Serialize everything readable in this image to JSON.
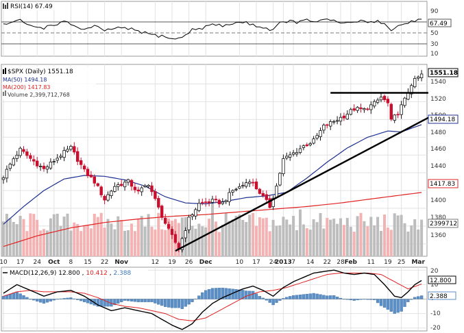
{
  "rsi_panel": {
    "label": "RSI(14) 67.49",
    "badge": "67.49",
    "ticks": [
      "90",
      "70",
      "50",
      "30",
      "10"
    ],
    "ytick_values": [
      90,
      70,
      50,
      30,
      10
    ],
    "ylim": [
      0,
      100
    ],
    "levels": [
      70,
      50,
      30
    ]
  },
  "price_panel": {
    "legend": {
      "symbol": "$SPX (Daily) 1551.18",
      "ma50": "MA(50) 1494.18",
      "ma200": "MA(200) 1417.83",
      "volume": "Volume 2,399,712,768"
    },
    "badges": {
      "last": "1551.18",
      "ma50": "1494.18",
      "ma200": "1417.83",
      "volume": "2399712"
    },
    "ticks": [
      "1540",
      "1520",
      "1500",
      "1480",
      "1460",
      "1440",
      "1420",
      "1400",
      "1380",
      "1360"
    ],
    "ytick_values": [
      1540,
      1520,
      1500,
      1480,
      1460,
      1440,
      1420,
      1400,
      1380,
      1360
    ],
    "ylim": [
      1346,
      1562
    ]
  },
  "x_axis": {
    "labels": [
      "10",
      "17",
      "24",
      "Oct",
      "8",
      "15",
      "22",
      "Nov",
      "12",
      "19",
      "26",
      "Dec",
      "10",
      "17",
      "24",
      "2013",
      "7",
      "14",
      "22",
      "28",
      "Feb",
      "11",
      "19",
      "25",
      "Mar"
    ],
    "bold": [
      "Oct",
      "Nov",
      "Dec",
      "2013",
      "Feb",
      "Mar"
    ],
    "session_index": [
      0,
      5,
      10,
      15,
      20,
      25,
      30,
      35,
      45,
      50,
      55,
      60,
      70,
      75,
      80,
      83,
      86,
      91,
      96,
      100,
      103,
      109,
      114,
      118,
      123
    ]
  },
  "macd_panel": {
    "label_name": "MACD(12,26,9)",
    "macd": "12.800",
    "signal": "10.412",
    "histogram": "2.388",
    "badges": {
      "macd": "12.800",
      "hist": "2.388"
    },
    "ticks": [
      "20",
      "10",
      "0",
      "-10",
      "-20"
    ],
    "ytick_values": [
      20,
      10,
      0,
      -10,
      -20
    ],
    "ylim": [
      -22,
      22
    ]
  },
  "colors": {
    "up": "#111111",
    "down": "#c8102e",
    "ma50": "#1c2f8f",
    "ma200": "#e02020",
    "vol_up": "#bdbdbd",
    "vol_down": "#f4b2b2",
    "macd": "#000000",
    "signal": "#e02020",
    "hist": "#5b8fc7",
    "grid": "#e2e2e2",
    "trend": "#000000"
  },
  "chart_data": {
    "type": "candlestick",
    "x_labels": [
      "10",
      "17",
      "24",
      "Oct",
      "8",
      "15",
      "22",
      "Nov",
      "12",
      "19",
      "26",
      "Dec",
      "10",
      "17",
      "24",
      "2013",
      "7",
      "14",
      "22",
      "28",
      "Feb",
      "11",
      "19",
      "25",
      "Mar"
    ],
    "price_anchors": [
      [
        0,
        1436
      ],
      [
        3,
        1456
      ],
      [
        5,
        1466
      ],
      [
        8,
        1456
      ],
      [
        12,
        1444
      ],
      [
        17,
        1460
      ],
      [
        20,
        1468
      ],
      [
        24,
        1442
      ],
      [
        27,
        1430
      ],
      [
        30,
        1410
      ],
      [
        33,
        1425
      ],
      [
        37,
        1430
      ],
      [
        40,
        1418
      ],
      [
        43,
        1428
      ],
      [
        46,
        1400
      ],
      [
        49,
        1375
      ],
      [
        52,
        1355
      ],
      [
        55,
        1388
      ],
      [
        58,
        1405
      ],
      [
        62,
        1408
      ],
      [
        65,
        1406
      ],
      [
        68,
        1420
      ],
      [
        71,
        1426
      ],
      [
        73,
        1432
      ],
      [
        76,
        1418
      ],
      [
        79,
        1402
      ],
      [
        81,
        1425
      ],
      [
        83,
        1455
      ],
      [
        86,
        1462
      ],
      [
        89,
        1470
      ],
      [
        92,
        1476
      ],
      [
        95,
        1492
      ],
      [
        98,
        1498
      ],
      [
        101,
        1504
      ],
      [
        104,
        1512
      ],
      [
        107,
        1511
      ],
      [
        110,
        1518
      ],
      [
        112,
        1525
      ],
      [
        114,
        1518
      ],
      [
        115,
        1498
      ],
      [
        117,
        1508
      ],
      [
        119,
        1522
      ],
      [
        121,
        1540
      ],
      [
        124,
        1551.18
      ]
    ],
    "ma50_anchors": [
      [
        0,
        1382
      ],
      [
        6,
        1402
      ],
      [
        12,
        1420
      ],
      [
        18,
        1433
      ],
      [
        24,
        1437
      ],
      [
        30,
        1436
      ],
      [
        36,
        1432
      ],
      [
        42,
        1425
      ],
      [
        48,
        1413
      ],
      [
        54,
        1406
      ],
      [
        60,
        1405
      ],
      [
        66,
        1408
      ],
      [
        72,
        1412
      ],
      [
        78,
        1414
      ],
      [
        84,
        1418
      ],
      [
        90,
        1434
      ],
      [
        96,
        1452
      ],
      [
        102,
        1468
      ],
      [
        108,
        1480
      ],
      [
        114,
        1487
      ],
      [
        118,
        1486
      ],
      [
        124,
        1494.18
      ]
    ],
    "ma200_anchors": [
      [
        0,
        1357
      ],
      [
        10,
        1369
      ],
      [
        20,
        1378
      ],
      [
        30,
        1384
      ],
      [
        40,
        1388
      ],
      [
        50,
        1391
      ],
      [
        60,
        1393
      ],
      [
        70,
        1396
      ],
      [
        80,
        1399
      ],
      [
        90,
        1402
      ],
      [
        100,
        1406
      ],
      [
        110,
        1411
      ],
      [
        124,
        1417.83
      ]
    ],
    "rsi_anchors": [
      [
        0,
        58
      ],
      [
        3,
        62
      ],
      [
        5,
        65
      ],
      [
        8,
        55
      ],
      [
        12,
        52
      ],
      [
        15,
        58
      ],
      [
        18,
        62
      ],
      [
        21,
        56
      ],
      [
        24,
        48
      ],
      [
        27,
        55
      ],
      [
        30,
        45
      ],
      [
        33,
        52
      ],
      [
        36,
        50
      ],
      [
        39,
        48
      ],
      [
        42,
        42
      ],
      [
        45,
        38
      ],
      [
        48,
        36
      ],
      [
        51,
        30
      ],
      [
        53,
        35
      ],
      [
        56,
        48
      ],
      [
        59,
        52
      ],
      [
        62,
        58
      ],
      [
        65,
        55
      ],
      [
        68,
        60
      ],
      [
        71,
        62
      ],
      [
        74,
        58
      ],
      [
        77,
        52
      ],
      [
        80,
        48
      ],
      [
        82,
        60
      ],
      [
        84,
        64
      ],
      [
        87,
        62
      ],
      [
        90,
        65
      ],
      [
        93,
        64
      ],
      [
        96,
        66
      ],
      [
        99,
        62
      ],
      [
        102,
        60
      ],
      [
        105,
        64
      ],
      [
        108,
        62
      ],
      [
        111,
        65
      ],
      [
        113,
        58
      ],
      [
        115,
        48
      ],
      [
        117,
        55
      ],
      [
        119,
        58
      ],
      [
        121,
        64
      ],
      [
        124,
        67.49
      ]
    ],
    "macd_anchors": [
      [
        0,
        4
      ],
      [
        4,
        10
      ],
      [
        8,
        6
      ],
      [
        12,
        2
      ],
      [
        16,
        5
      ],
      [
        20,
        6
      ],
      [
        24,
        2
      ],
      [
        28,
        -4
      ],
      [
        32,
        -8
      ],
      [
        36,
        -6
      ],
      [
        40,
        -8
      ],
      [
        44,
        -10
      ],
      [
        47,
        -14
      ],
      [
        50,
        -18
      ],
      [
        53,
        -21
      ],
      [
        56,
        -17
      ],
      [
        59,
        -9
      ],
      [
        62,
        -3
      ],
      [
        65,
        1
      ],
      [
        68,
        4
      ],
      [
        71,
        7
      ],
      [
        74,
        9
      ],
      [
        77,
        6
      ],
      [
        80,
        2
      ],
      [
        83,
        8
      ],
      [
        86,
        12
      ],
      [
        89,
        15
      ],
      [
        92,
        18
      ],
      [
        95,
        19
      ],
      [
        98,
        20
      ],
      [
        101,
        18
      ],
      [
        104,
        17
      ],
      [
        107,
        18
      ],
      [
        110,
        17
      ],
      [
        113,
        10
      ],
      [
        116,
        2
      ],
      [
        118,
        1
      ],
      [
        120,
        5
      ],
      [
        122,
        10
      ],
      [
        124,
        12.8
      ]
    ],
    "signal_anchors": [
      [
        0,
        2
      ],
      [
        4,
        5
      ],
      [
        8,
        6
      ],
      [
        12,
        5
      ],
      [
        16,
        5
      ],
      [
        20,
        5
      ],
      [
        24,
        4
      ],
      [
        28,
        1
      ],
      [
        32,
        -3
      ],
      [
        36,
        -5
      ],
      [
        40,
        -6
      ],
      [
        44,
        -8
      ],
      [
        48,
        -10
      ],
      [
        52,
        -14
      ],
      [
        56,
        -15
      ],
      [
        60,
        -13
      ],
      [
        64,
        -8
      ],
      [
        68,
        -3
      ],
      [
        72,
        2
      ],
      [
        76,
        5
      ],
      [
        80,
        6
      ],
      [
        84,
        8
      ],
      [
        88,
        11
      ],
      [
        92,
        14
      ],
      [
        96,
        17
      ],
      [
        100,
        18
      ],
      [
        104,
        18
      ],
      [
        108,
        18
      ],
      [
        112,
        17
      ],
      [
        116,
        12
      ],
      [
        120,
        7
      ],
      [
        124,
        10.412
      ]
    ],
    "trendlines": [
      {
        "name": "support",
        "from": [
          51,
          1352
        ],
        "to": [
          126,
          1502
        ]
      },
      {
        "name": "resistance",
        "from": [
          97,
          1530
        ],
        "to": [
          126,
          1530
        ]
      }
    ]
  }
}
